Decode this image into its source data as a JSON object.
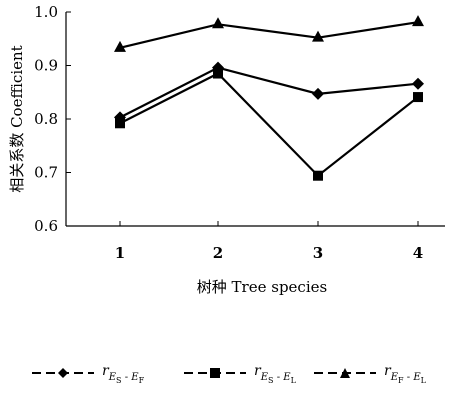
{
  "chart_data": {
    "type": "line",
    "categories": [
      "1",
      "2",
      "3",
      "4"
    ],
    "xlabel": "树种 Tree species",
    "ylabel": "相关系数 Coefficient",
    "ylim": [
      0.6,
      1.0
    ],
    "yticks": [
      "0.6",
      "0.7",
      "0.8",
      "0.9",
      "1.0"
    ],
    "grid": false,
    "legend_position": "bottom",
    "series": [
      {
        "name": "rES-EF",
        "marker": "diamond",
        "values": [
          0.803,
          0.896,
          0.847,
          0.866
        ]
      },
      {
        "name": "rES-EL",
        "marker": "square",
        "values": [
          0.792,
          0.885,
          0.694,
          0.841
        ]
      },
      {
        "name": "rEF-EL",
        "marker": "triangle",
        "values": [
          0.933,
          0.977,
          0.952,
          0.981
        ]
      }
    ]
  },
  "legend": [
    {
      "main": "r",
      "sub1": "E",
      "subsub1": "S",
      "dash": "-",
      "sub2": "E",
      "subsub2": "F"
    },
    {
      "main": "r",
      "sub1": "E",
      "subsub1": "S",
      "dash": "-",
      "sub2": "E",
      "subsub2": "L"
    },
    {
      "main": "r",
      "sub1": "E",
      "subsub1": "F",
      "dash": "-",
      "sub2": "E",
      "subsub2": "L"
    }
  ]
}
